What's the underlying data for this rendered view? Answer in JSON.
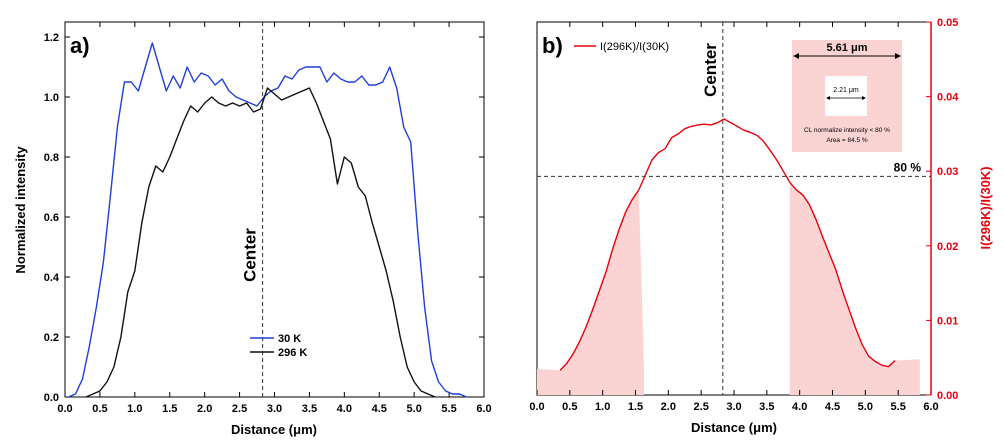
{
  "chart_data": [
    {
      "panel_label": "a)",
      "type": "line",
      "xlabel": "Distance (μm)",
      "ylabel": "Normalized intensity",
      "xlim": [
        0.0,
        6.0
      ],
      "ylim": [
        0.0,
        1.25
      ],
      "xticks": [
        "0.0",
        "0.5",
        "1.0",
        "1.5",
        "2.0",
        "2.5",
        "3.0",
        "3.5",
        "4.0",
        "4.5",
        "5.0",
        "5.5",
        "6.0"
      ],
      "yticks": [
        "0.0",
        "0.2",
        "0.4",
        "0.6",
        "0.8",
        "1.0",
        "1.2"
      ],
      "center_x": 2.83,
      "center_label": "Center",
      "legend": [
        "30 K",
        "296 K"
      ],
      "series": [
        {
          "name": "30 K",
          "color": "#1f3fd8",
          "points": [
            [
              0.05,
              0.0
            ],
            [
              0.15,
              0.01
            ],
            [
              0.25,
              0.06
            ],
            [
              0.35,
              0.17
            ],
            [
              0.45,
              0.3
            ],
            [
              0.55,
              0.45
            ],
            [
              0.65,
              0.67
            ],
            [
              0.75,
              0.9
            ],
            [
              0.85,
              1.05
            ],
            [
              0.95,
              1.05
            ],
            [
              1.05,
              1.02
            ],
            [
              1.15,
              1.1
            ],
            [
              1.25,
              1.18
            ],
            [
              1.35,
              1.1
            ],
            [
              1.45,
              1.02
            ],
            [
              1.55,
              1.07
            ],
            [
              1.65,
              1.03
            ],
            [
              1.75,
              1.1
            ],
            [
              1.85,
              1.05
            ],
            [
              1.95,
              1.08
            ],
            [
              2.05,
              1.07
            ],
            [
              2.15,
              1.04
            ],
            [
              2.25,
              1.06
            ],
            [
              2.35,
              1.02
            ],
            [
              2.45,
              1.0
            ],
            [
              2.55,
              0.99
            ],
            [
              2.65,
              0.98
            ],
            [
              2.75,
              0.97
            ],
            [
              2.85,
              1.0
            ],
            [
              2.95,
              1.02
            ],
            [
              3.05,
              1.03
            ],
            [
              3.15,
              1.07
            ],
            [
              3.25,
              1.06
            ],
            [
              3.35,
              1.09
            ],
            [
              3.45,
              1.1
            ],
            [
              3.55,
              1.1
            ],
            [
              3.65,
              1.1
            ],
            [
              3.75,
              1.05
            ],
            [
              3.85,
              1.08
            ],
            [
              3.95,
              1.06
            ],
            [
              4.05,
              1.05
            ],
            [
              4.15,
              1.05
            ],
            [
              4.25,
              1.07
            ],
            [
              4.35,
              1.04
            ],
            [
              4.45,
              1.04
            ],
            [
              4.55,
              1.05
            ],
            [
              4.65,
              1.1
            ],
            [
              4.75,
              1.03
            ],
            [
              4.85,
              0.9
            ],
            [
              4.95,
              0.85
            ],
            [
              5.05,
              0.55
            ],
            [
              5.15,
              0.3
            ],
            [
              5.25,
              0.12
            ],
            [
              5.35,
              0.05
            ],
            [
              5.45,
              0.02
            ],
            [
              5.55,
              0.01
            ],
            [
              5.65,
              0.01
            ],
            [
              5.75,
              0.0
            ]
          ]
        },
        {
          "name": "296 K",
          "color": "#111111",
          "points": [
            [
              0.3,
              0.0
            ],
            [
              0.4,
              0.01
            ],
            [
              0.5,
              0.02
            ],
            [
              0.6,
              0.05
            ],
            [
              0.7,
              0.1
            ],
            [
              0.8,
              0.2
            ],
            [
              0.9,
              0.35
            ],
            [
              1.0,
              0.42
            ],
            [
              1.1,
              0.58
            ],
            [
              1.2,
              0.7
            ],
            [
              1.3,
              0.77
            ],
            [
              1.4,
              0.75
            ],
            [
              1.5,
              0.8
            ],
            [
              1.6,
              0.86
            ],
            [
              1.7,
              0.92
            ],
            [
              1.8,
              0.97
            ],
            [
              1.9,
              0.95
            ],
            [
              2.0,
              0.98
            ],
            [
              2.1,
              1.0
            ],
            [
              2.2,
              0.98
            ],
            [
              2.3,
              0.97
            ],
            [
              2.4,
              0.98
            ],
            [
              2.5,
              0.97
            ],
            [
              2.6,
              0.98
            ],
            [
              2.7,
              0.95
            ],
            [
              2.8,
              0.96
            ],
            [
              2.9,
              1.03
            ],
            [
              3.0,
              1.01
            ],
            [
              3.1,
              0.99
            ],
            [
              3.2,
              1.0
            ],
            [
              3.3,
              1.01
            ],
            [
              3.4,
              1.02
            ],
            [
              3.5,
              1.03
            ],
            [
              3.6,
              0.98
            ],
            [
              3.7,
              0.92
            ],
            [
              3.8,
              0.86
            ],
            [
              3.9,
              0.71
            ],
            [
              4.0,
              0.8
            ],
            [
              4.1,
              0.78
            ],
            [
              4.2,
              0.7
            ],
            [
              4.3,
              0.67
            ],
            [
              4.4,
              0.58
            ],
            [
              4.5,
              0.5
            ],
            [
              4.6,
              0.42
            ],
            [
              4.7,
              0.32
            ],
            [
              4.8,
              0.2
            ],
            [
              4.9,
              0.1
            ],
            [
              5.0,
              0.05
            ],
            [
              5.1,
              0.02
            ],
            [
              5.2,
              0.01
            ],
            [
              5.3,
              0.0
            ]
          ]
        }
      ]
    },
    {
      "panel_label": "b)",
      "type": "line",
      "xlabel": "Distance (μm)",
      "ylabel": "I(296K)/I(30K)",
      "xlim": [
        0.0,
        6.0
      ],
      "ylim": [
        0.0,
        0.05
      ],
      "xticks": [
        "0.0",
        "0.5",
        "1.0",
        "1.5",
        "2.0",
        "2.5",
        "3.0",
        "3.5",
        "4.0",
        "4.5",
        "5.0",
        "5.5",
        "6.0"
      ],
      "yticks": [
        "0.00",
        "0.01",
        "0.02",
        "0.03",
        "0.04",
        "0.05"
      ],
      "center_x": 2.83,
      "center_label": "Center",
      "threshold_y": 0.0293,
      "threshold_label": "80 %",
      "legend": [
        "I(296K)/I(30K)"
      ],
      "shaded_regions": [
        [
          0.0,
          1.63,
          0.0035
        ],
        [
          3.85,
          5.83,
          0.0048
        ]
      ],
      "inset": {
        "outer_label": "5.61 μm",
        "inner_label": "2.21 μm",
        "caption_1": "CL normalize intensity < 80 %",
        "caption_2": "Area = 84.5 %"
      },
      "series": [
        {
          "name": "I(296K)/I(30K)",
          "color": "#e8000b",
          "points": [
            [
              0.35,
              0.0033
            ],
            [
              0.45,
              0.0042
            ],
            [
              0.55,
              0.0055
            ],
            [
              0.65,
              0.0072
            ],
            [
              0.75,
              0.0092
            ],
            [
              0.85,
              0.0115
            ],
            [
              0.95,
              0.014
            ],
            [
              1.05,
              0.0165
            ],
            [
              1.15,
              0.0195
            ],
            [
              1.25,
              0.0222
            ],
            [
              1.35,
              0.0245
            ],
            [
              1.45,
              0.0262
            ],
            [
              1.55,
              0.0275
            ],
            [
              1.65,
              0.0295
            ],
            [
              1.75,
              0.0315
            ],
            [
              1.85,
              0.0325
            ],
            [
              1.95,
              0.033
            ],
            [
              2.05,
              0.0345
            ],
            [
              2.15,
              0.035
            ],
            [
              2.25,
              0.0357
            ],
            [
              2.35,
              0.036
            ],
            [
              2.45,
              0.0362
            ],
            [
              2.55,
              0.0363
            ],
            [
              2.65,
              0.0362
            ],
            [
              2.75,
              0.0365
            ],
            [
              2.85,
              0.037
            ],
            [
              2.95,
              0.0365
            ],
            [
              3.05,
              0.036
            ],
            [
              3.15,
              0.0355
            ],
            [
              3.25,
              0.0352
            ],
            [
              3.35,
              0.0348
            ],
            [
              3.45,
              0.034
            ],
            [
              3.55,
              0.0328
            ],
            [
              3.65,
              0.0315
            ],
            [
              3.75,
              0.03
            ],
            [
              3.85,
              0.0285
            ],
            [
              3.95,
              0.0275
            ],
            [
              4.05,
              0.0268
            ],
            [
              4.15,
              0.0255
            ],
            [
              4.25,
              0.0235
            ],
            [
              4.35,
              0.0212
            ],
            [
              4.45,
              0.019
            ],
            [
              4.55,
              0.0168
            ],
            [
              4.65,
              0.014
            ],
            [
              4.75,
              0.0115
            ],
            [
              4.85,
              0.009
            ],
            [
              4.95,
              0.0068
            ],
            [
              5.05,
              0.0052
            ],
            [
              5.15,
              0.0045
            ],
            [
              5.25,
              0.004
            ],
            [
              5.35,
              0.0038
            ],
            [
              5.45,
              0.0046
            ]
          ]
        }
      ]
    }
  ]
}
